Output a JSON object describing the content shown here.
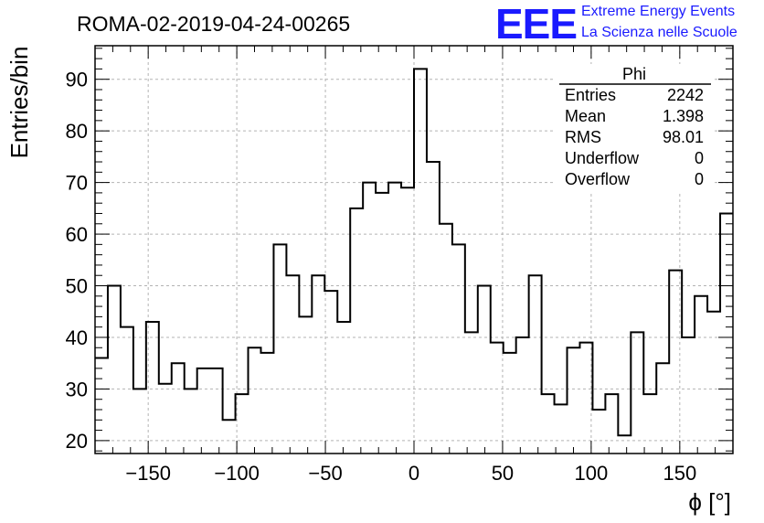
{
  "header": {
    "run_title": "ROMA-02-2019-04-24-00265",
    "logo": {
      "mark": "EEE",
      "line1": "Extreme Energy Events",
      "line2": "La Scienza nelle Scuole",
      "color": "#1a1aff"
    }
  },
  "stats_box": {
    "name": "Phi",
    "rows": [
      {
        "label": "Entries",
        "value": "2242"
      },
      {
        "label": "Mean",
        "value": "1.398"
      },
      {
        "label": "RMS",
        "value": "98.01"
      },
      {
        "label": "Underflow",
        "value": "0"
      },
      {
        "label": "Overflow",
        "value": "0"
      }
    ]
  },
  "chart_data": {
    "type": "bar",
    "style": "step-histogram",
    "title": "ROMA-02-2019-04-24-00265",
    "xlabel": "ϕ [°]",
    "ylabel": "Entries/bin",
    "xlim": [
      -180,
      180
    ],
    "ylim": [
      17.5,
      96.5
    ],
    "bin_width": 7.2,
    "x_ticks": [
      -150,
      -100,
      -50,
      0,
      50,
      100,
      150
    ],
    "x_tick_labels": [
      "−150",
      "−100",
      "−50",
      "0",
      "50",
      "100",
      "150"
    ],
    "y_ticks": [
      20,
      30,
      40,
      50,
      60,
      70,
      80,
      90
    ],
    "y_tick_labels": [
      "20",
      "30",
      "40",
      "50",
      "60",
      "70",
      "80",
      "90"
    ],
    "grid": true,
    "legend": "top-right stats box",
    "line_color": "#000000",
    "values": [
      36,
      50,
      42,
      30,
      43,
      31,
      35,
      30,
      34,
      34,
      24,
      29,
      38,
      37,
      58,
      52,
      44,
      52,
      49,
      43,
      65,
      70,
      68,
      70,
      69,
      92,
      74,
      62,
      58,
      41,
      50,
      39,
      37,
      40,
      52,
      29,
      27,
      38,
      39,
      26,
      29,
      21,
      41,
      29,
      35,
      53,
      40,
      48,
      45,
      64
    ]
  }
}
